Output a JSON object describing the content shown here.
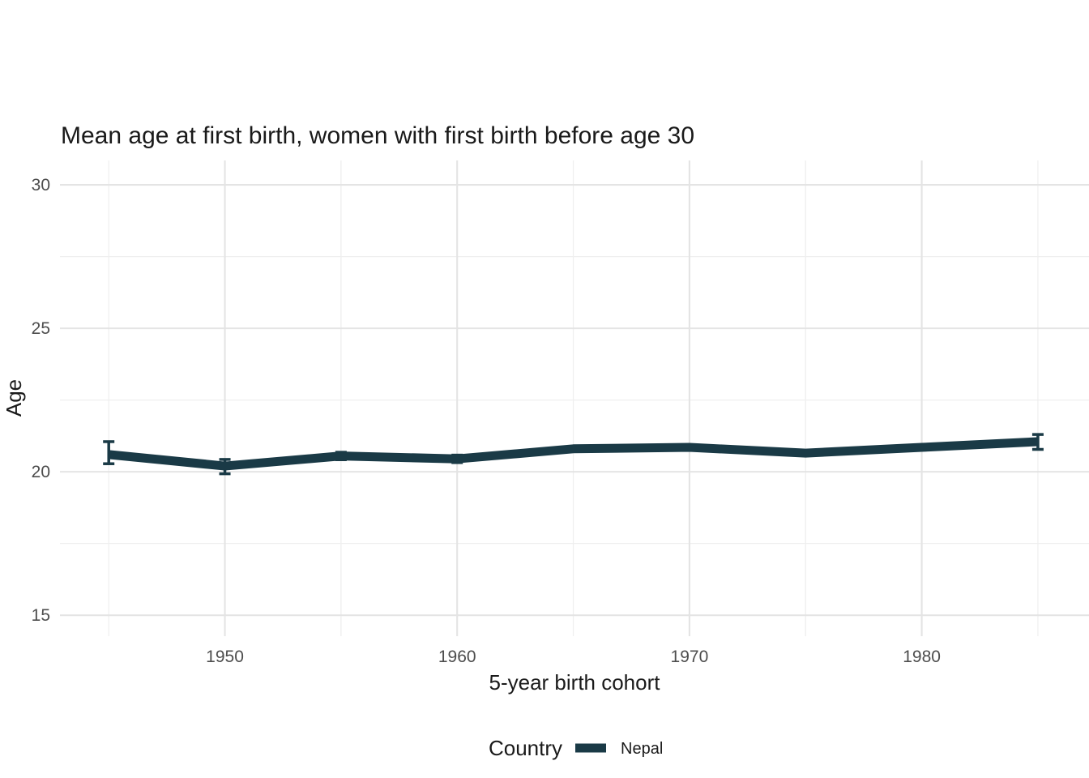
{
  "title": "Mean age at first birth, women with first birth before age 30",
  "axes": {
    "x_label": "5-year birth cohort",
    "y_label": "Age",
    "x_tick_labels": [
      "1950",
      "1960",
      "1970",
      "1980"
    ],
    "y_tick_labels": [
      "15",
      "20",
      "25",
      "30"
    ]
  },
  "legend": {
    "title": "Country",
    "series_label": "Nepal",
    "position": "bottom"
  },
  "colors": {
    "line": "#1a3a46",
    "grid_major": "#e4e4e4",
    "grid_minor": "#efefef",
    "axis_text": "#4d4d4d",
    "title_text": "#1a1a1a",
    "background": "#ffffff"
  },
  "chart_data": {
    "type": "line",
    "title": "Mean age at first birth, women with first birth before age 30",
    "xlabel": "5-year birth cohort",
    "ylabel": "Age",
    "x": [
      1945,
      1950,
      1955,
      1960,
      1965,
      1970,
      1975,
      1980,
      1985
    ],
    "x_major_ticks": [
      1950,
      1960,
      1970,
      1980
    ],
    "x_minor_gridlines": [
      1945,
      1955,
      1965,
      1975,
      1985
    ],
    "y_major_ticks": [
      15,
      20,
      25,
      30
    ],
    "y_minor_gridlines": [
      17.5,
      22.5,
      27.5
    ],
    "xlim": [
      1942.9,
      1987.2
    ],
    "ylim": [
      14.27,
      30.85
    ],
    "grid": true,
    "legend_position": "bottom",
    "series": [
      {
        "name": "Nepal",
        "values": [
          20.6,
          20.2,
          20.55,
          20.45,
          20.8,
          20.85,
          20.65,
          20.85,
          21.05
        ],
        "ci_low": [
          20.28,
          19.93,
          20.42,
          20.32,
          20.72,
          20.77,
          20.57,
          20.77,
          20.78
        ],
        "ci_high": [
          21.05,
          20.43,
          20.68,
          20.58,
          20.88,
          20.93,
          20.73,
          20.93,
          21.3
        ]
      }
    ]
  }
}
